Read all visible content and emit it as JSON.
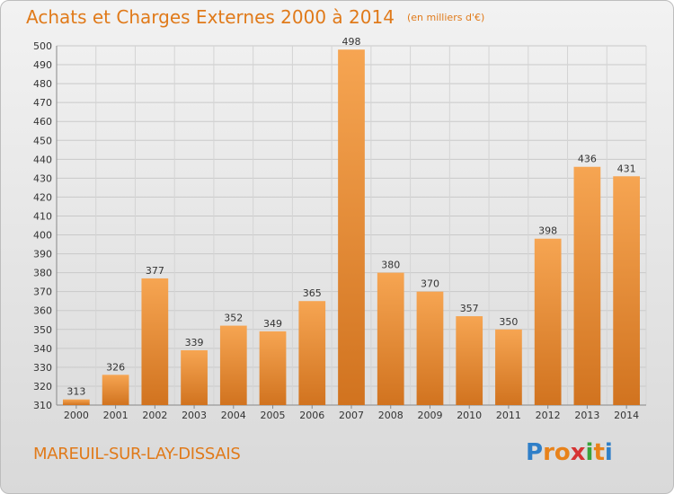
{
  "header": {
    "title": "Achats et Charges Externes 2000 à 2014",
    "unit": "(en milliers d'€)"
  },
  "footer": {
    "commune": "MAREUIL-SUR-LAY-DISSAIS",
    "logo_letters": [
      "P",
      "r",
      "o",
      "x",
      "i",
      "t",
      "i"
    ],
    "logo_colors": [
      "#2f7fc8",
      "#e8821a",
      "#e8821a",
      "#d63333",
      "#3aa33a",
      "#e8821a",
      "#2f7fc8"
    ]
  },
  "colors": {
    "bar_light": "#f6a552",
    "bar_dark": "#d1731f",
    "accent": "#e07a1a"
  },
  "chart_data": {
    "type": "bar",
    "categories": [
      "2000",
      "2001",
      "2002",
      "2003",
      "2004",
      "2005",
      "2006",
      "2007",
      "2008",
      "2009",
      "2010",
      "2011",
      "2012",
      "2013",
      "2014"
    ],
    "values": [
      313,
      326,
      377,
      339,
      352,
      349,
      365,
      498,
      380,
      370,
      357,
      350,
      398,
      436,
      431
    ],
    "ylim": [
      310,
      500
    ],
    "ytick_step": 10,
    "grid": true
  }
}
